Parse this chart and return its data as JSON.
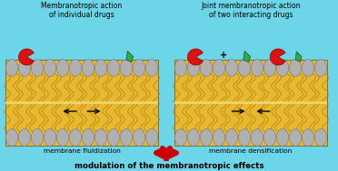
{
  "bg_color": "#6dd5e8",
  "membrane_yellow": "#e8b830",
  "membrane_yellow2": "#d4a020",
  "membrane_yellow3": "#f5cc50",
  "head_color": "#b0b0b0",
  "head_edge": "#787878",
  "text_color": "#000000",
  "red_drug": "#dd1111",
  "green_drug": "#33aa44",
  "title1": "Membranotropic action\nof individual drugs",
  "title2": "Joint membranotropic action\nof two interacting drugs",
  "label_left": "membrane fluidization",
  "label_right": "membrane densification",
  "bottom_text": "modulation of the membranotropic effects",
  "arrow_color": "#cc0000",
  "border_color": "#666633",
  "n_heads": 12,
  "figw": 3.72,
  "figh": 1.89
}
